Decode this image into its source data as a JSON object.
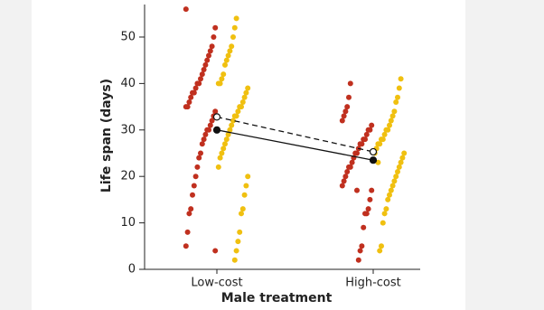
{
  "chart_data": {
    "type": "strip",
    "xlabel": "Male treatment",
    "ylabel": "Life span (days)",
    "categories": [
      "Low-cost",
      "High-cost"
    ],
    "ylim": [
      0,
      57
    ],
    "yticks": [
      0,
      10,
      20,
      30,
      40,
      50
    ],
    "series": [
      {
        "color": "#c0301f",
        "mean_color": "#111111",
        "mean_line": "solid",
        "means": [
          30,
          23.5
        ],
        "values": [
          [
            56,
            52,
            50,
            48,
            47,
            46,
            45,
            44,
            43,
            42,
            41,
            40,
            40,
            39,
            38,
            38,
            37,
            36,
            35,
            35,
            34,
            33,
            32,
            31,
            30,
            30,
            29,
            28,
            27,
            25,
            24,
            22,
            20,
            18,
            16,
            13,
            12,
            8,
            5,
            4
          ],
          [
            40,
            37,
            35,
            34,
            33,
            32,
            31,
            30,
            30,
            29,
            28,
            28,
            27,
            27,
            26,
            25,
            25,
            24,
            23,
            22,
            22,
            21,
            20,
            19,
            18,
            17,
            15,
            13,
            12,
            12,
            9,
            5,
            4,
            2,
            17
          ]
        ]
      },
      {
        "color": "#f0c010",
        "mean_color": "#ffffff",
        "mean_line": "dashed",
        "means": [
          32.8,
          25.3
        ],
        "values": [
          [
            54,
            52,
            50,
            48,
            47,
            46,
            45,
            44,
            42,
            41,
            40,
            40,
            39,
            38,
            37,
            36,
            35,
            35,
            34,
            33,
            33,
            32,
            31,
            30,
            29,
            28,
            27,
            26,
            25,
            24,
            22,
            20,
            18,
            16,
            13,
            12,
            8,
            6,
            4,
            2
          ],
          [
            41,
            39,
            37,
            36,
            34,
            33,
            32,
            31,
            30,
            30,
            29,
            28,
            28,
            27,
            27,
            26,
            25,
            25,
            24,
            23,
            22,
            21,
            20,
            19,
            18,
            17,
            16,
            15,
            13,
            12,
            10,
            5,
            4,
            23,
            26
          ]
        ]
      }
    ]
  }
}
